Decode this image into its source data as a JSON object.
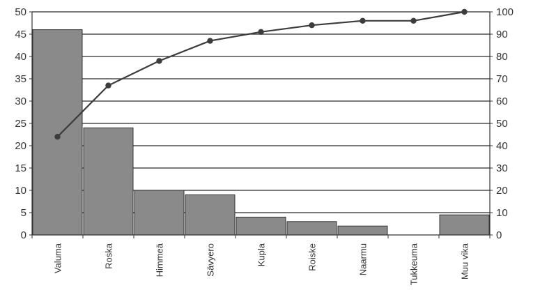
{
  "chart_data": {
    "type": "bar",
    "categories": [
      "Valuma",
      "Roska",
      "Himmeä",
      "Sävyero",
      "Kupla",
      "Roiske",
      "Naarmu",
      "Tukkeuma",
      "Muu vika"
    ],
    "series": [
      {
        "type": "bar",
        "axis": "left",
        "values": [
          46,
          24,
          10,
          9,
          4,
          3,
          2,
          0,
          4.5
        ]
      },
      {
        "type": "line",
        "axis": "right",
        "values": [
          44,
          67,
          78,
          87,
          91,
          94,
          96,
          96,
          100
        ]
      }
    ],
    "y_left": {
      "min": 0,
      "max": 50,
      "ticks": [
        0,
        5,
        10,
        15,
        20,
        25,
        30,
        35,
        40,
        45,
        50
      ]
    },
    "y_right": {
      "min": 0,
      "max": 100,
      "ticks": [
        0,
        10,
        20,
        30,
        40,
        50,
        60,
        70,
        80,
        90,
        100
      ]
    },
    "grid": true,
    "colors": {
      "bar": "#8a8a8a",
      "line": "#3c3c3c",
      "grid": "#2a2a2a"
    }
  }
}
